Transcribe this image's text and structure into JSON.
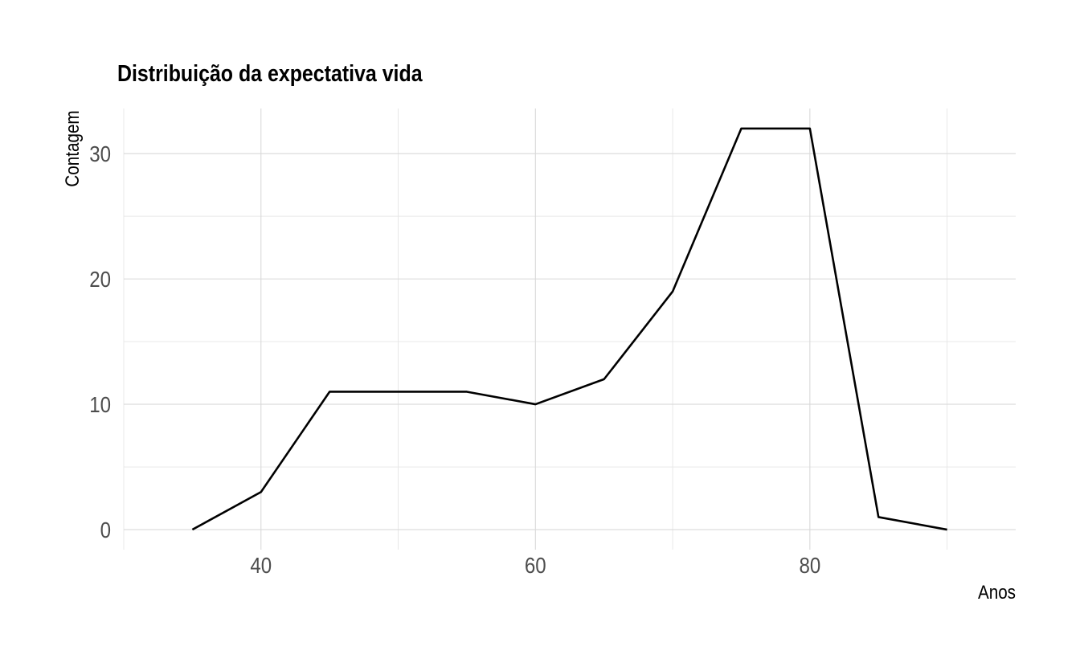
{
  "chart_data": {
    "type": "line",
    "title": "Distribuição da expectativa vida",
    "xlabel": "Anos",
    "ylabel": "Contagem",
    "x": [
      35,
      40,
      45,
      50,
      55,
      60,
      65,
      70,
      75,
      80,
      85,
      90
    ],
    "series": [
      {
        "values": [
          0,
          3,
          11,
          11,
          11,
          10,
          12,
          19,
          32,
          32,
          1,
          0
        ]
      }
    ],
    "xlim": [
      30,
      95
    ],
    "ylim": [
      -1.6,
      33.6
    ],
    "x_ticks": [
      40,
      60,
      80
    ],
    "x_minor_ticks": [
      30,
      50,
      70,
      90
    ],
    "y_ticks": [
      0,
      10,
      20,
      30
    ],
    "y_minor_ticks": [
      5,
      15,
      25
    ],
    "grid": true,
    "legend": "none",
    "line_color": "#000000"
  }
}
